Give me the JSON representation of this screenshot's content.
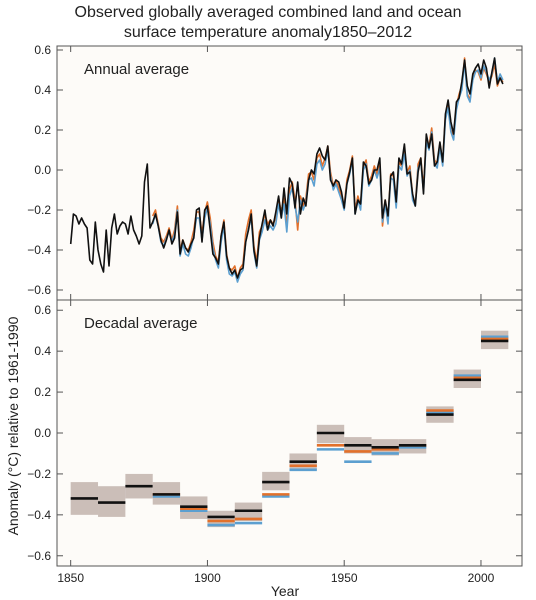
{
  "title_line1": "Observed globally averaged combined land and ocean",
  "title_line2": "surface temperature anomaly1850–2012",
  "ylabel": "Anomaly (°C) relative to 1961-1990",
  "xlabel": "Year",
  "colors": {
    "black_series": "#111111",
    "orange_series": "#e2702b",
    "blue_series": "#5c9fd0",
    "uncertainty": "#c2b3ad",
    "frame": "#555555",
    "panel_bg": "#fdfbf8"
  },
  "chart_data": [
    {
      "type": "line",
      "panel_label": "Annual average",
      "ylim": [
        -0.65,
        0.62
      ],
      "yticks": [
        "0.6",
        "0.4",
        "0.2",
        "0.0",
        "−0.2",
        "−0.4",
        "−0.6"
      ],
      "ytick_values": [
        0.6,
        0.4,
        0.2,
        0.0,
        -0.2,
        -0.4,
        -0.6
      ],
      "xlim": [
        1845,
        2015
      ],
      "x_start": 1850,
      "series": [
        {
          "color_key": "black_series",
          "start": 1850,
          "values": [
            -0.37,
            -0.22,
            -0.23,
            -0.27,
            -0.24,
            -0.27,
            -0.29,
            -0.45,
            -0.47,
            -0.26,
            -0.4,
            -0.47,
            -0.51,
            -0.3,
            -0.48,
            -0.29,
            -0.22,
            -0.32,
            -0.28,
            -0.26,
            -0.27,
            -0.32,
            -0.23,
            -0.3,
            -0.33,
            -0.37,
            -0.33,
            -0.06,
            0.03,
            -0.29,
            -0.26,
            -0.22,
            -0.28,
            -0.35,
            -0.39,
            -0.35,
            -0.3,
            -0.37,
            -0.34,
            -0.21,
            -0.42,
            -0.35,
            -0.39,
            -0.41,
            -0.37,
            -0.34,
            -0.2,
            -0.19,
            -0.36,
            -0.2,
            -0.18,
            -0.3,
            -0.42,
            -0.44,
            -0.47,
            -0.33,
            -0.26,
            -0.43,
            -0.49,
            -0.52,
            -0.5,
            -0.54,
            -0.5,
            -0.49,
            -0.36,
            -0.3,
            -0.22,
            -0.4,
            -0.48,
            -0.34,
            -0.27,
            -0.2,
            -0.3,
            -0.25,
            -0.28,
            -0.21,
            -0.13,
            -0.24,
            -0.09,
            -0.22,
            -0.04,
            -0.07,
            -0.19,
            -0.06,
            -0.22,
            -0.14,
            -0.18,
            -0.05,
            0.0,
            -0.02,
            0.08,
            0.11,
            0.07,
            0.05,
            0.12,
            -0.05,
            -0.08,
            -0.05,
            -0.06,
            -0.11,
            -0.19,
            -0.07,
            -0.01,
            0.06,
            -0.22,
            -0.15,
            -0.17,
            0.04,
            0.02,
            -0.07,
            -0.05,
            0.0,
            0.0,
            0.06,
            -0.24,
            -0.15,
            -0.23,
            -0.03,
            -0.01,
            -0.16,
            0.06,
            0.03,
            0.13,
            -0.02,
            -0.01,
            -0.12,
            -0.18,
            -0.01,
            0.06,
            -0.12,
            0.18,
            0.11,
            0.18,
            0.02,
            0.04,
            0.14,
            0.04,
            0.28,
            0.35,
            0.24,
            0.18,
            0.34,
            0.36,
            0.44,
            0.55,
            0.42,
            0.38,
            0.48,
            0.51,
            0.53,
            0.48,
            0.55,
            0.51,
            0.41,
            0.49,
            0.56,
            0.43,
            0.46,
            0.43
          ]
        },
        {
          "color_key": "orange_series",
          "start": 1880,
          "values": [
            -0.23,
            -0.2,
            -0.27,
            -0.34,
            -0.36,
            -0.33,
            -0.29,
            -0.35,
            -0.3,
            -0.18,
            -0.4,
            -0.35,
            -0.39,
            -0.4,
            -0.36,
            -0.3,
            -0.21,
            -0.21,
            -0.32,
            -0.21,
            -0.16,
            -0.24,
            -0.36,
            -0.43,
            -0.46,
            -0.33,
            -0.25,
            -0.42,
            -0.49,
            -0.5,
            -0.48,
            -0.54,
            -0.49,
            -0.47,
            -0.32,
            -0.25,
            -0.2,
            -0.38,
            -0.46,
            -0.31,
            -0.28,
            -0.22,
            -0.27,
            -0.25,
            -0.27,
            -0.24,
            -0.14,
            -0.21,
            -0.14,
            -0.28,
            -0.1,
            -0.06,
            -0.15,
            -0.3,
            -0.13,
            -0.18,
            -0.14,
            -0.02,
            -0.01,
            -0.05,
            0.06,
            0.08,
            0.02,
            0.06,
            0.12,
            -0.01,
            -0.08,
            -0.05,
            -0.09,
            -0.13,
            -0.18,
            -0.05,
            0.0,
            0.07,
            -0.2,
            -0.13,
            -0.18,
            0.02,
            0.05,
            -0.06,
            -0.03,
            0.02,
            -0.02,
            0.03,
            -0.28,
            -0.15,
            -0.25,
            -0.02,
            -0.03,
            -0.17,
            0.04,
            0.02,
            0.1,
            -0.01,
            0.02,
            -0.13,
            -0.17,
            0.03,
            0.06,
            -0.09,
            0.16,
            0.12,
            0.21,
            0.05,
            0.03,
            0.13,
            0.04,
            0.27,
            0.33,
            0.2,
            0.17,
            0.32,
            0.38,
            0.42,
            0.56,
            0.38,
            0.35,
            0.46,
            0.5,
            0.49,
            0.45,
            0.51,
            0.48,
            0.44,
            0.47,
            0.53,
            0.42,
            0.46,
            0.44
          ]
        },
        {
          "color_key": "blue_series",
          "start": 1880,
          "values": [
            -0.27,
            -0.22,
            -0.28,
            -0.36,
            -0.38,
            -0.34,
            -0.31,
            -0.36,
            -0.32,
            -0.2,
            -0.43,
            -0.37,
            -0.42,
            -0.43,
            -0.39,
            -0.33,
            -0.24,
            -0.24,
            -0.35,
            -0.24,
            -0.19,
            -0.27,
            -0.39,
            -0.45,
            -0.49,
            -0.36,
            -0.28,
            -0.45,
            -0.52,
            -0.53,
            -0.51,
            -0.56,
            -0.52,
            -0.5,
            -0.36,
            -0.29,
            -0.24,
            -0.41,
            -0.49,
            -0.35,
            -0.31,
            -0.25,
            -0.3,
            -0.28,
            -0.3,
            -0.27,
            -0.17,
            -0.24,
            -0.17,
            -0.31,
            -0.13,
            -0.09,
            -0.18,
            -0.26,
            -0.15,
            -0.2,
            -0.16,
            -0.05,
            -0.04,
            -0.08,
            0.03,
            0.05,
            0.0,
            0.03,
            0.1,
            -0.03,
            -0.1,
            -0.07,
            -0.11,
            -0.15,
            -0.2,
            -0.07,
            -0.02,
            0.05,
            -0.22,
            -0.15,
            -0.2,
            0.0,
            0.03,
            -0.08,
            -0.05,
            0.0,
            -0.04,
            0.01,
            -0.26,
            -0.17,
            -0.27,
            -0.04,
            -0.05,
            -0.19,
            0.02,
            0.0,
            0.08,
            -0.03,
            0.0,
            -0.15,
            -0.18,
            0.01,
            0.04,
            -0.11,
            0.14,
            0.1,
            0.19,
            0.03,
            0.01,
            0.11,
            0.02,
            0.25,
            0.31,
            0.19,
            0.15,
            0.3,
            0.36,
            0.4,
            0.54,
            0.37,
            0.34,
            0.45,
            0.49,
            0.5,
            0.46,
            0.52,
            0.49,
            0.45,
            0.48,
            0.56,
            0.44,
            0.48,
            0.45
          ]
        }
      ]
    },
    {
      "type": "bar",
      "panel_label": "Decadal average",
      "ylim": [
        -0.65,
        0.65
      ],
      "yticks": [
        "0.6",
        "0.4",
        "0.2",
        "0.0",
        "−0.2",
        "−0.4",
        "−0.6"
      ],
      "ytick_values": [
        0.6,
        0.4,
        0.2,
        0.0,
        -0.2,
        -0.4,
        -0.6
      ],
      "xlim": [
        1845,
        2015
      ],
      "xticks": [
        "1850",
        "1900",
        "1950",
        "2000"
      ],
      "xtick_values": [
        1850,
        1900,
        1950,
        2000
      ],
      "decades": [
        {
          "start": 1850,
          "end": 1860,
          "black": -0.32,
          "band": [
            -0.4,
            -0.24
          ]
        },
        {
          "start": 1860,
          "end": 1870,
          "black": -0.34,
          "band": [
            -0.41,
            -0.26
          ]
        },
        {
          "start": 1870,
          "end": 1880,
          "black": -0.26,
          "band": [
            -0.32,
            -0.2
          ]
        },
        {
          "start": 1880,
          "end": 1890,
          "black": -0.3,
          "orange": -0.3,
          "blue": -0.31,
          "band": [
            -0.35,
            -0.24
          ]
        },
        {
          "start": 1890,
          "end": 1900,
          "black": -0.36,
          "orange": -0.37,
          "blue": -0.38,
          "band": [
            -0.42,
            -0.31
          ]
        },
        {
          "start": 1900,
          "end": 1910,
          "black": -0.41,
          "orange": -0.43,
          "blue": -0.45,
          "band": [
            -0.46,
            -0.38
          ]
        },
        {
          "start": 1910,
          "end": 1920,
          "black": -0.38,
          "orange": -0.42,
          "blue": -0.44,
          "band": [
            -0.43,
            -0.34
          ]
        },
        {
          "start": 1920,
          "end": 1930,
          "black": -0.24,
          "orange": -0.3,
          "blue": -0.31,
          "band": [
            -0.28,
            -0.19
          ]
        },
        {
          "start": 1930,
          "end": 1940,
          "black": -0.14,
          "orange": -0.16,
          "blue": -0.18,
          "band": [
            -0.18,
            -0.1
          ]
        },
        {
          "start": 1940,
          "end": 1950,
          "black": 0.0,
          "orange": -0.06,
          "blue": -0.08,
          "band": [
            -0.05,
            0.04
          ]
        },
        {
          "start": 1950,
          "end": 1960,
          "black": -0.06,
          "orange": -0.09,
          "blue": -0.14,
          "band": [
            -0.1,
            -0.02
          ]
        },
        {
          "start": 1960,
          "end": 1970,
          "black": -0.07,
          "orange": -0.08,
          "blue": -0.1,
          "band": [
            -0.11,
            -0.03
          ]
        },
        {
          "start": 1970,
          "end": 1980,
          "black": -0.06,
          "orange": -0.06,
          "blue": -0.07,
          "band": [
            -0.1,
            -0.03
          ]
        },
        {
          "start": 1980,
          "end": 1990,
          "black": 0.09,
          "orange": 0.11,
          "blue": 0.1,
          "band": [
            0.05,
            0.13
          ]
        },
        {
          "start": 1990,
          "end": 2000,
          "black": 0.26,
          "orange": 0.27,
          "blue": 0.28,
          "band": [
            0.22,
            0.31
          ]
        },
        {
          "start": 2000,
          "end": 2010,
          "black": 0.45,
          "orange": 0.46,
          "blue": 0.47,
          "band": [
            0.41,
            0.5
          ]
        }
      ]
    }
  ]
}
